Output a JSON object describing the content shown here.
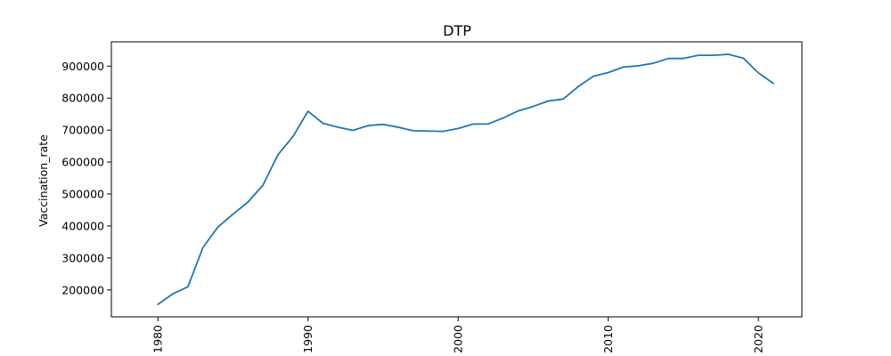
{
  "chart_data": {
    "type": "line",
    "title": "DTP",
    "xlabel": "",
    "ylabel": "Vaccination_rate",
    "x": [
      1980,
      1981,
      1982,
      1983,
      1984,
      1985,
      1986,
      1987,
      1988,
      1989,
      1990,
      1991,
      1992,
      1993,
      1994,
      1995,
      1996,
      1997,
      1998,
      1999,
      2000,
      2001,
      2002,
      2003,
      2004,
      2005,
      2006,
      2007,
      2008,
      2009,
      2010,
      2011,
      2012,
      2013,
      2014,
      2015,
      2016,
      2017,
      2018,
      2019,
      2020,
      2021
    ],
    "series": [
      {
        "color": "#1f77b4",
        "values": [
          155000,
          188000,
          210000,
          333000,
          397000,
          437000,
          475000,
          528000,
          623000,
          680000,
          759000,
          721000,
          709000,
          699000,
          714000,
          718000,
          709000,
          698000,
          697000,
          696000,
          705000,
          719000,
          719000,
          738000,
          760000,
          774000,
          791000,
          797000,
          836000,
          868000,
          880000,
          897000,
          901000,
          909000,
          924000,
          924000,
          934000,
          934000,
          937000,
          925000,
          879000,
          846000
        ]
      }
    ],
    "xlim": [
      1976.9,
      2022.9
    ],
    "ylim": [
      116000,
      976000
    ],
    "xticks": [
      "1980",
      "1990",
      "2000",
      "2010",
      "2020"
    ],
    "yticks": [
      "200000",
      "300000",
      "400000",
      "500000",
      "600000",
      "700000",
      "800000",
      "900000"
    ],
    "xtick_rotation": "vertical",
    "grid": false
  }
}
